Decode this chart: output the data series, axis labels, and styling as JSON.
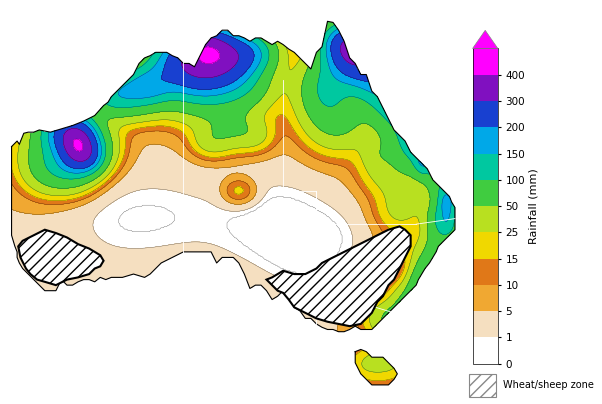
{
  "colorbar_label": "Rainfall (mm)",
  "colorbar_ticks": [
    0,
    1,
    5,
    10,
    15,
    25,
    50,
    100,
    150,
    200,
    300,
    400
  ],
  "colorbar_colors": [
    "#ffffff",
    "#f5dfc0",
    "#f0a832",
    "#e07818",
    "#f0d800",
    "#b8e020",
    "#40cc40",
    "#00c8a0",
    "#00a8e8",
    "#1840d0",
    "#8010c0",
    "#ff00ff"
  ],
  "figsize": [
    6.02,
    4.04
  ],
  "dpi": 100,
  "background_color": "#ffffff"
}
